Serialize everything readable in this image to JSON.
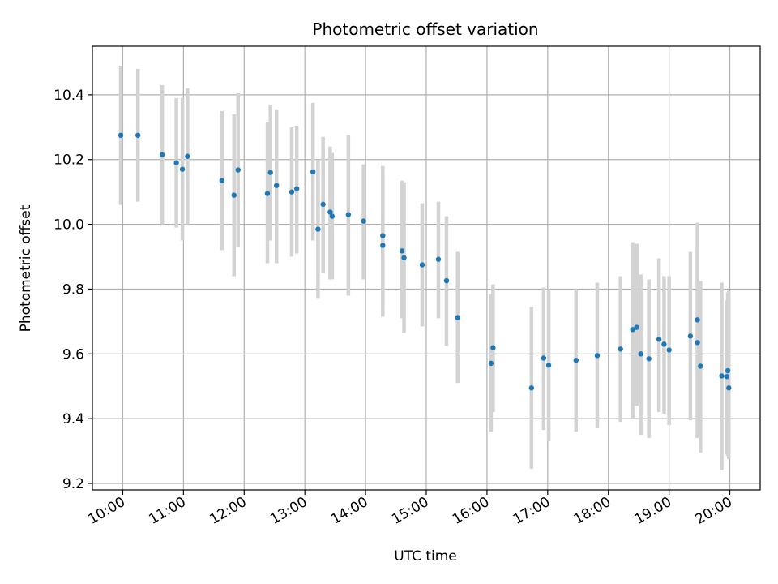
{
  "chart_data": {
    "type": "scatter",
    "title": "Photometric offset variation",
    "xlabel": "UTC time",
    "ylabel": "Photometric offset",
    "grid": true,
    "xlim": [
      "09:30",
      "20:30"
    ],
    "ylim": [
      9.18,
      10.55
    ],
    "x_ticks": [
      "10:00",
      "11:00",
      "12:00",
      "13:00",
      "14:00",
      "15:00",
      "16:00",
      "17:00",
      "18:00",
      "19:00",
      "20:00"
    ],
    "y_ticks": [
      "9.2",
      "9.4",
      "9.6",
      "9.8",
      "10.0",
      "10.2",
      "10.4"
    ],
    "colors": {
      "point": "#1f77b4",
      "errorbar": "#d3d3d3",
      "grid": "#b0b0b0"
    },
    "series": [
      {
        "x": [
          "09:58",
          "10:15",
          "10:39",
          "10:53",
          "10:59",
          "11:04",
          "11:38",
          "11:50",
          "11:54",
          "12:23",
          "12:26",
          "12:32",
          "12:47",
          "12:52",
          "13:08",
          "13:13",
          "13:18",
          "13:25",
          "13:27",
          "13:43",
          "13:58",
          "14:17",
          "14:17",
          "14:36",
          "14:38",
          "14:56",
          "15:12",
          "15:20",
          "15:31",
          "16:04",
          "16:06",
          "16:44",
          "16:56",
          "17:01",
          "17:28",
          "17:49",
          "18:12",
          "18:24",
          "18:28",
          "18:32",
          "18:40",
          "18:50",
          "18:55",
          "19:00",
          "19:21",
          "19:28",
          "19:28",
          "19:31",
          "19:52",
          "19:57",
          "19:58",
          "19:59"
        ],
        "y": [
          10.275,
          10.275,
          10.215,
          10.19,
          10.17,
          10.21,
          10.135,
          10.09,
          10.168,
          10.095,
          10.16,
          10.12,
          10.1,
          10.11,
          10.162,
          9.985,
          10.062,
          10.038,
          10.025,
          10.03,
          10.01,
          9.965,
          9.935,
          9.918,
          9.897,
          9.875,
          9.892,
          9.826,
          9.712,
          9.571,
          9.619,
          9.495,
          9.587,
          9.565,
          9.58,
          9.595,
          9.615,
          9.675,
          9.682,
          9.6,
          9.585,
          9.645,
          9.63,
          9.612,
          9.655,
          9.705,
          9.635,
          9.562,
          9.532,
          9.53,
          9.548,
          9.495
        ],
        "yerr_low": [
          10.06,
          10.07,
          10.0,
          9.99,
          9.95,
          10.0,
          9.92,
          9.84,
          9.93,
          9.88,
          9.95,
          9.88,
          9.9,
          9.91,
          9.95,
          9.77,
          9.85,
          9.83,
          9.83,
          9.78,
          9.83,
          9.75,
          9.715,
          9.71,
          9.665,
          9.685,
          9.71,
          9.625,
          9.51,
          9.36,
          9.42,
          9.245,
          9.365,
          9.33,
          9.36,
          9.37,
          9.39,
          9.4,
          9.44,
          9.35,
          9.34,
          9.42,
          9.415,
          9.38,
          9.395,
          9.34,
          9.345,
          9.295,
          9.24,
          9.29,
          9.285,
          9.275
        ],
        "yerr_high": [
          10.49,
          10.48,
          10.43,
          10.39,
          10.39,
          10.42,
          10.35,
          10.34,
          10.405,
          10.315,
          10.37,
          10.355,
          10.3,
          10.305,
          10.375,
          10.2,
          10.27,
          10.24,
          10.22,
          10.275,
          10.185,
          10.18,
          10.15,
          10.135,
          10.13,
          10.065,
          10.07,
          10.025,
          9.915,
          9.785,
          9.815,
          9.745,
          9.805,
          9.8,
          9.8,
          9.82,
          9.84,
          9.945,
          9.94,
          9.845,
          9.83,
          9.895,
          9.84,
          9.84,
          9.915,
          10.005,
          9.925,
          9.825,
          9.82,
          9.765,
          9.79,
          9.795
        ]
      }
    ]
  }
}
